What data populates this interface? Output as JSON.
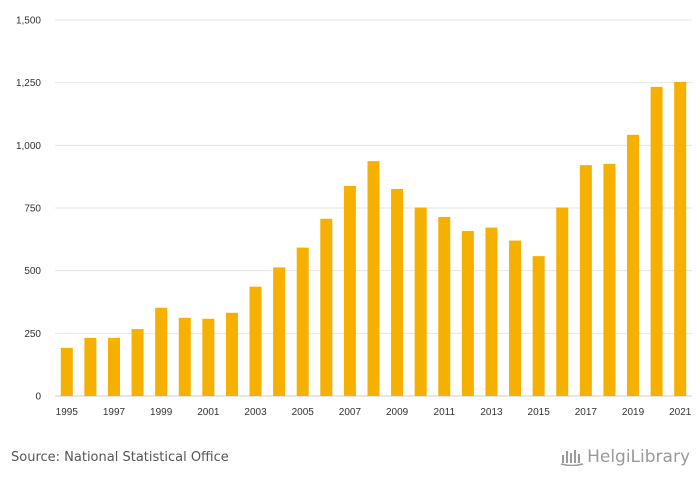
{
  "chart_data": {
    "type": "bar",
    "categories": [
      "1995",
      "1996",
      "1997",
      "1998",
      "1999",
      "2000",
      "2001",
      "2002",
      "2003",
      "2004",
      "2005",
      "2006",
      "2007",
      "2008",
      "2009",
      "2010",
      "2011",
      "2012",
      "2013",
      "2014",
      "2015",
      "2016",
      "2017",
      "2018",
      "2019",
      "2020",
      "2021"
    ],
    "x_tick_labels": [
      "1995",
      "1997",
      "1999",
      "2001",
      "2003",
      "2005",
      "2007",
      "2009",
      "2011",
      "2013",
      "2015",
      "2017",
      "2019",
      "2021"
    ],
    "values": [
      192,
      232,
      232,
      267,
      352,
      312,
      308,
      332,
      436,
      513,
      592,
      707,
      838,
      937,
      826,
      752,
      714,
      658,
      672,
      620,
      558,
      752,
      921,
      926,
      1042,
      1233,
      1253
    ],
    "y_ticks": [
      0,
      250,
      500,
      750,
      1000,
      1250,
      1500
    ],
    "y_tick_labels": [
      "0",
      "250",
      "500",
      "750",
      "1,000",
      "1,250",
      "1,500"
    ],
    "ylim": [
      0,
      1500
    ],
    "title": "",
    "xlabel": "",
    "ylabel": "",
    "grid": true,
    "bar_color": "#f5b000"
  },
  "footer": {
    "source": "Source: National Statistical Office",
    "brand": "HelgiLibrary",
    "brand_icon": "helgi-library-logo-icon"
  }
}
